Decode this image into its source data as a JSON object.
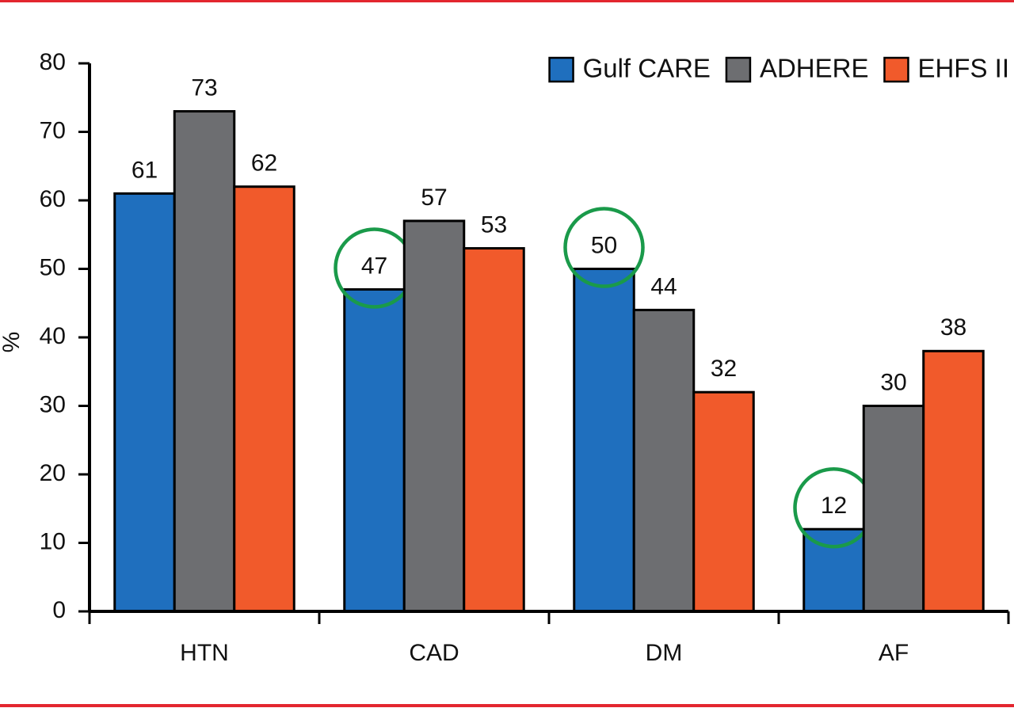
{
  "chart_data": {
    "type": "bar",
    "y_label": "%",
    "categories": [
      "HTN",
      "CAD",
      "DM",
      "AF"
    ],
    "series": [
      {
        "name": "Gulf CARE",
        "color": "#1f6fbe",
        "values": [
          61,
          47,
          50,
          12
        ],
        "circled": [
          false,
          true,
          true,
          true
        ]
      },
      {
        "name": "ADHERE",
        "color": "#6d6e71",
        "values": [
          73,
          57,
          44,
          30
        ]
      },
      {
        "name": "EHFS II",
        "color": "#f15a2b",
        "values": [
          62,
          53,
          32,
          38
        ]
      }
    ],
    "ylim": [
      0,
      80
    ],
    "yticks": [
      0,
      10,
      20,
      30,
      40,
      50,
      60,
      70,
      80
    ],
    "legend": "top-right",
    "circle_color": "#1a9a4a",
    "grid": false
  }
}
